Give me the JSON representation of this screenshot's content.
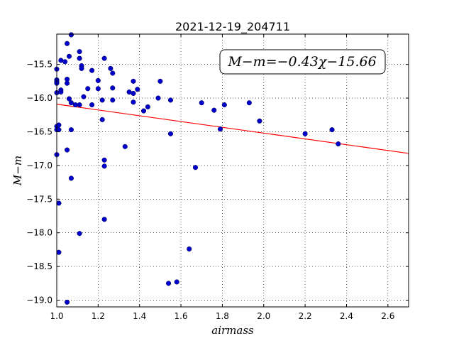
{
  "chart_data": {
    "type": "scatter",
    "title": "2021-12-19_204711",
    "xlabel": "airmass",
    "ylabel": "M−m",
    "xlim": [
      1.0,
      2.7
    ],
    "ylim": [
      -19.1,
      -15.05
    ],
    "xticks": [
      1.0,
      1.2,
      1.4,
      1.6,
      1.8,
      2.0,
      2.2,
      2.4,
      2.6
    ],
    "xtick_labels": [
      "1.0",
      "1.2",
      "1.4",
      "1.6",
      "1.8",
      "2.0",
      "2.2",
      "2.4",
      "2.6"
    ],
    "yticks": [
      -15.5,
      -16.0,
      -16.5,
      -17.0,
      -17.5,
      -18.0,
      -18.5,
      -19.0
    ],
    "ytick_labels": [
      "−15.5",
      "−16.0",
      "−16.5",
      "−17.0",
      "−17.5",
      "−18.0",
      "−18.5",
      "−19.0"
    ],
    "grid": true,
    "annotation": "M−m=−0.43χ−15.66",
    "fit": {
      "slope": -0.43,
      "intercept": -15.66,
      "color": "#ff0000"
    },
    "point_color": "#0000cc",
    "points": [
      [
        1.0,
        -15.57
      ],
      [
        1.0,
        -15.73
      ],
      [
        1.0,
        -15.76
      ],
      [
        1.0,
        -15.78
      ],
      [
        1.0,
        -15.92
      ],
      [
        1.0,
        -16.42
      ],
      [
        1.0,
        -16.47
      ],
      [
        1.0,
        -16.84
      ],
      [
        1.02,
        -15.44
      ],
      [
        1.02,
        -15.88
      ],
      [
        1.02,
        -15.91
      ],
      [
        1.01,
        -16.4
      ],
      [
        1.01,
        -16.47
      ],
      [
        1.01,
        -17.56
      ],
      [
        1.01,
        -18.29
      ],
      [
        1.04,
        -15.46
      ],
      [
        1.05,
        -15.19
      ],
      [
        1.05,
        -15.72
      ],
      [
        1.05,
        -15.78
      ],
      [
        1.06,
        -15.38
      ],
      [
        1.06,
        -16.01
      ],
      [
        1.05,
        -16.77
      ],
      [
        1.05,
        -19.03
      ],
      [
        1.07,
        -15.06
      ],
      [
        1.07,
        -16.07
      ],
      [
        1.07,
        -16.47
      ],
      [
        1.07,
        -17.19
      ],
      [
        1.09,
        -16.1
      ],
      [
        1.11,
        -15.31
      ],
      [
        1.11,
        -15.41
      ],
      [
        1.11,
        -16.1
      ],
      [
        1.12,
        -15.52
      ],
      [
        1.12,
        -15.56
      ],
      [
        1.13,
        -15.98
      ],
      [
        1.11,
        -18.01
      ],
      [
        1.15,
        -15.86
      ],
      [
        1.17,
        -15.59
      ],
      [
        1.17,
        -16.1
      ],
      [
        1.2,
        -15.74
      ],
      [
        1.2,
        -15.86
      ],
      [
        1.22,
        -16.03
      ],
      [
        1.22,
        -16.32
      ],
      [
        1.23,
        -15.41
      ],
      [
        1.23,
        -16.92
      ],
      [
        1.23,
        -17.01
      ],
      [
        1.23,
        -17.8
      ],
      [
        1.26,
        -15.56
      ],
      [
        1.27,
        -15.63
      ],
      [
        1.27,
        -15.85
      ],
      [
        1.27,
        -16.03
      ],
      [
        1.33,
        -16.72
      ],
      [
        1.35,
        -15.91
      ],
      [
        1.37,
        -15.75
      ],
      [
        1.37,
        -15.93
      ],
      [
        1.37,
        -16.06
      ],
      [
        1.39,
        -15.87
      ],
      [
        1.42,
        -16.19
      ],
      [
        1.44,
        -16.13
      ],
      [
        1.49,
        -16.0
      ],
      [
        1.5,
        -15.75
      ],
      [
        1.54,
        -18.75
      ],
      [
        1.55,
        -16.03
      ],
      [
        1.55,
        -16.53
      ],
      [
        1.58,
        -18.73
      ],
      [
        1.64,
        -18.24
      ],
      [
        1.67,
        -17.03
      ],
      [
        1.7,
        -16.07
      ],
      [
        1.76,
        -16.18
      ],
      [
        1.79,
        -16.46
      ],
      [
        1.81,
        -16.1
      ],
      [
        1.93,
        -16.07
      ],
      [
        1.98,
        -16.34
      ],
      [
        2.2,
        -16.53
      ],
      [
        2.33,
        -16.47
      ],
      [
        2.36,
        -16.68
      ]
    ]
  }
}
